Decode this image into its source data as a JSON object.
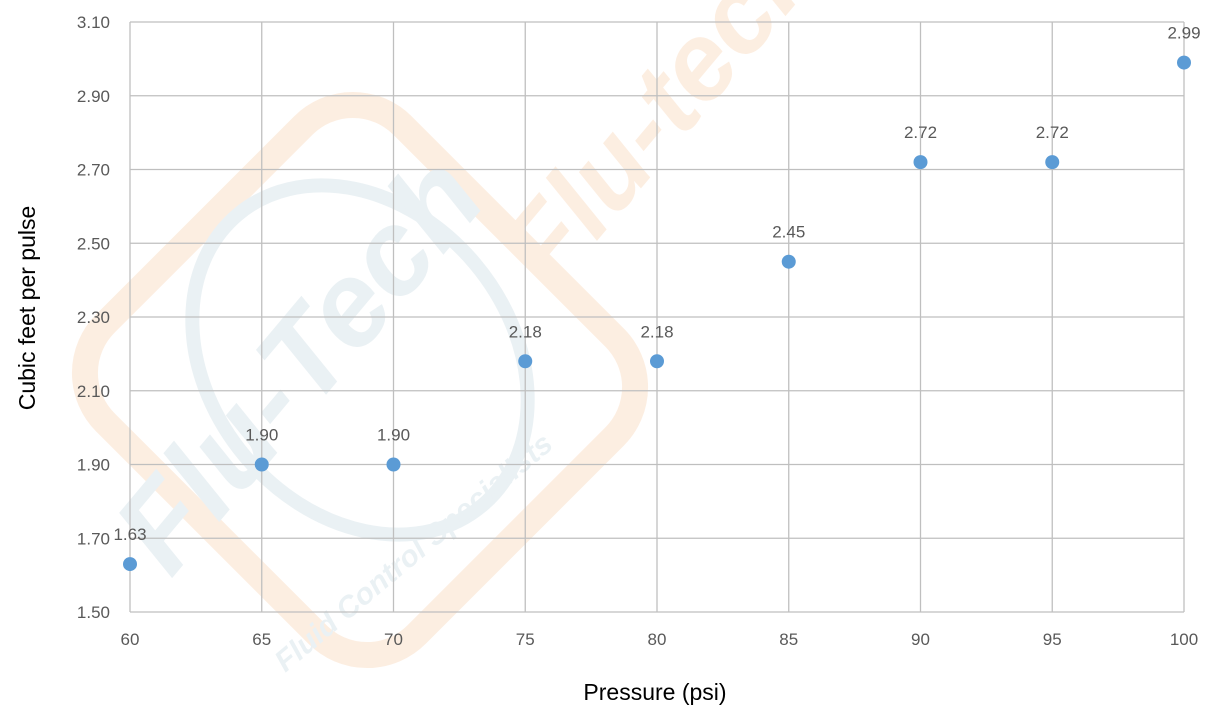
{
  "chart_data": {
    "type": "scatter",
    "title": "",
    "xlabel": "Pressure (psi)",
    "ylabel": "Cubic feet per pulse",
    "xlim": [
      60,
      100
    ],
    "ylim": [
      1.5,
      3.1
    ],
    "xticks": [
      "60",
      "65",
      "70",
      "75",
      "80",
      "85",
      "90",
      "95",
      "100"
    ],
    "yticks": [
      "1.50",
      "1.70",
      "1.90",
      "2.10",
      "2.30",
      "2.50",
      "2.70",
      "2.90",
      "3.10"
    ],
    "grid": true,
    "legend": "none",
    "series": [
      {
        "x": [
          60,
          65,
          70,
          75,
          80,
          85,
          90,
          95,
          100
        ],
        "y": [
          1.63,
          1.9,
          1.9,
          2.18,
          2.18,
          2.45,
          2.72,
          2.72,
          2.99
        ],
        "labels": [
          "1.63",
          "1.90",
          "1.90",
          "2.18",
          "2.18",
          "2.45",
          "2.72",
          "2.72",
          "2.99"
        ],
        "color": "#5B9BD5"
      }
    ]
  },
  "watermark": {
    "logo_text": "Flu-Tech",
    "tagline": "Fluid Control Specialists",
    "second_logo_text": "Flu-tech",
    "colors": {
      "orange": "#F4A460",
      "gray": "#B0C4CE"
    }
  }
}
